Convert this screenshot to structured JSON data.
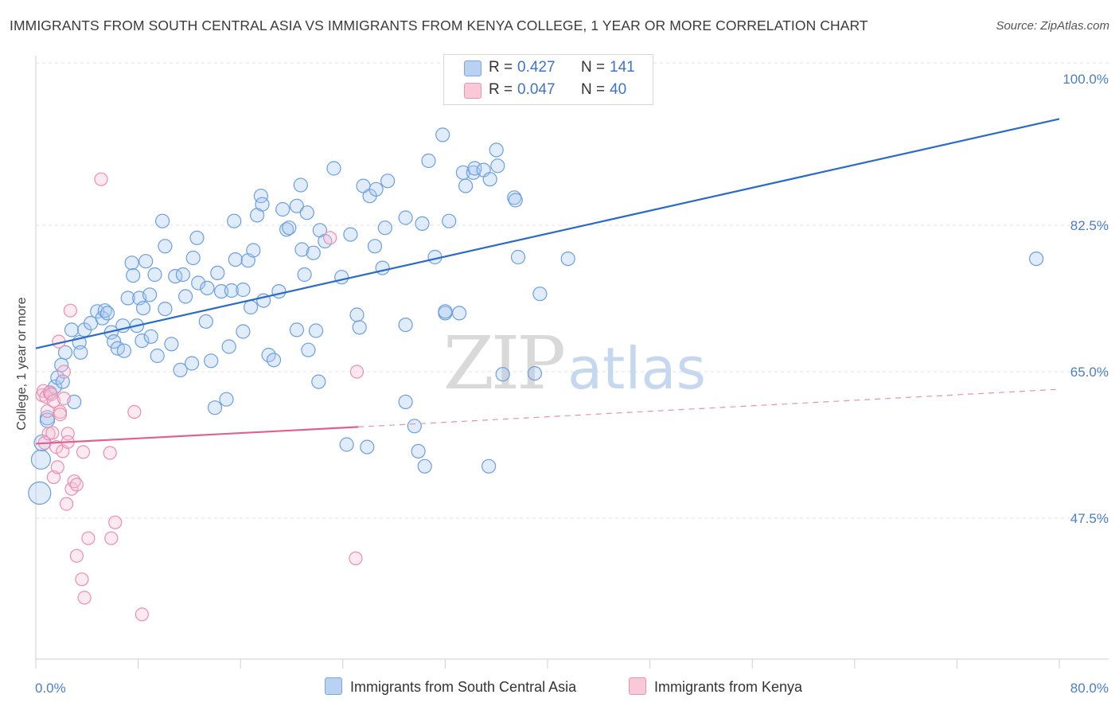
{
  "header": {
    "title": "IMMIGRANTS FROM SOUTH CENTRAL ASIA VS IMMIGRANTS FROM KENYA COLLEGE, 1 YEAR OR MORE CORRELATION CHART",
    "source": "Source: ZipAtlas.com"
  },
  "watermark": {
    "zip": "ZIP",
    "atlas": "atlas"
  },
  "legend_top": {
    "rows": [
      {
        "r_label": "R =",
        "r_value": "0.427",
        "n_label": "N =",
        "n_value": "141"
      },
      {
        "r_label": "R =",
        "r_value": "0.047",
        "n_label": "N =",
        "n_value": "40"
      }
    ]
  },
  "chart_data": {
    "type": "scatter",
    "title": "IMMIGRANTS FROM SOUTH CENTRAL ASIA VS IMMIGRANTS FROM KENYA COLLEGE, 1 YEAR OR MORE CORRELATION CHART",
    "xlabel": "",
    "ylabel": "College, 1 year or more",
    "xlim": [
      0,
      80
    ],
    "ylim": [
      32,
      102
    ],
    "x_tick_labels": [
      "0.0%",
      "80.0%"
    ],
    "y_ticks": [
      {
        "value": 100,
        "label": "100.0%"
      },
      {
        "value": 82.5,
        "label": "82.5%"
      },
      {
        "value": 65,
        "label": "65.0%"
      },
      {
        "value": 47.5,
        "label": "47.5%"
      }
    ],
    "grid": true,
    "legend_position": "bottom",
    "colors": {
      "blue": "#6b9fe0",
      "blue_fill": "#aac8f0",
      "blue_line": "#2a6bc9",
      "pink": "#ea8eb0",
      "pink_fill": "#f6c3d5",
      "pink_line": "#e0608e"
    },
    "series": [
      {
        "name": "Immigrants from South Central Asia",
        "color": "#6b9fe0",
        "trend": {
          "x": [
            0,
            80
          ],
          "y": [
            67.8,
            95.2
          ],
          "style": "solid"
        },
        "points": [
          [
            0.3,
            50.5
          ],
          [
            0.4,
            54.5
          ],
          [
            0.5,
            56.5
          ],
          [
            0.9,
            59.5
          ],
          [
            0.9,
            59.2
          ],
          [
            1.1,
            62.5
          ],
          [
            1.5,
            63.2
          ],
          [
            1.7,
            64.3
          ],
          [
            2.0,
            65.8
          ],
          [
            2.1,
            63.8
          ],
          [
            2.3,
            67.3
          ],
          [
            2.8,
            70.0
          ],
          [
            3.0,
            61.4
          ],
          [
            3.4,
            68.5
          ],
          [
            3.5,
            67.3
          ],
          [
            3.8,
            70.0
          ],
          [
            4.3,
            70.8
          ],
          [
            4.8,
            72.2
          ],
          [
            5.2,
            71.4
          ],
          [
            5.4,
            72.3
          ],
          [
            5.6,
            72.0
          ],
          [
            5.9,
            69.7
          ],
          [
            6.1,
            68.6
          ],
          [
            6.4,
            67.8
          ],
          [
            6.8,
            70.5
          ],
          [
            6.9,
            67.5
          ],
          [
            7.2,
            73.8
          ],
          [
            7.5,
            78.0
          ],
          [
            7.6,
            76.5
          ],
          [
            7.9,
            70.5
          ],
          [
            8.1,
            73.8
          ],
          [
            8.3,
            68.7
          ],
          [
            8.4,
            72.6
          ],
          [
            8.6,
            78.2
          ],
          [
            8.9,
            74.2
          ],
          [
            9.0,
            69.2
          ],
          [
            9.3,
            76.6
          ],
          [
            9.5,
            66.9
          ],
          [
            9.9,
            83.0
          ],
          [
            10.1,
            80.0
          ],
          [
            10.1,
            72.5
          ],
          [
            10.6,
            68.3
          ],
          [
            10.9,
            76.4
          ],
          [
            11.3,
            65.2
          ],
          [
            11.5,
            76.6
          ],
          [
            11.7,
            74.0
          ],
          [
            12.2,
            66.0
          ],
          [
            12.3,
            78.6
          ],
          [
            12.6,
            81.0
          ],
          [
            12.7,
            75.6
          ],
          [
            13.3,
            71.0
          ],
          [
            13.4,
            75.0
          ],
          [
            13.7,
            66.3
          ],
          [
            14.0,
            60.7
          ],
          [
            14.2,
            76.8
          ],
          [
            14.5,
            74.6
          ],
          [
            14.9,
            61.7
          ],
          [
            15.1,
            68.0
          ],
          [
            15.3,
            74.7
          ],
          [
            15.5,
            83.0
          ],
          [
            15.6,
            78.4
          ],
          [
            16.2,
            74.8
          ],
          [
            16.2,
            69.8
          ],
          [
            16.6,
            78.3
          ],
          [
            16.8,
            72.7
          ],
          [
            17.0,
            79.5
          ],
          [
            17.3,
            83.7
          ],
          [
            17.6,
            86.0
          ],
          [
            17.7,
            85.0
          ],
          [
            17.8,
            73.5
          ],
          [
            18.2,
            67.0
          ],
          [
            18.6,
            66.4
          ],
          [
            19.0,
            74.6
          ],
          [
            19.3,
            84.4
          ],
          [
            19.6,
            82.0
          ],
          [
            19.8,
            82.2
          ],
          [
            20.4,
            70.0
          ],
          [
            20.4,
            84.8
          ],
          [
            20.7,
            87.3
          ],
          [
            20.8,
            79.6
          ],
          [
            21.0,
            76.6
          ],
          [
            21.2,
            84.0
          ],
          [
            21.3,
            67.6
          ],
          [
            21.7,
            79.2
          ],
          [
            21.9,
            69.9
          ],
          [
            22.1,
            63.8
          ],
          [
            22.2,
            81.9
          ],
          [
            22.6,
            80.6
          ],
          [
            23.3,
            89.3
          ],
          [
            23.9,
            76.3
          ],
          [
            24.3,
            56.3
          ],
          [
            24.6,
            81.4
          ],
          [
            25.1,
            71.8
          ],
          [
            25.3,
            70.3
          ],
          [
            25.6,
            87.2
          ],
          [
            25.9,
            56.0
          ],
          [
            26.1,
            86.0
          ],
          [
            26.5,
            80.0
          ],
          [
            26.6,
            86.8
          ],
          [
            27.1,
            77.4
          ],
          [
            27.3,
            82.2
          ],
          [
            27.5,
            87.8
          ],
          [
            28.9,
            83.4
          ],
          [
            28.9,
            70.6
          ],
          [
            28.9,
            61.4
          ],
          [
            29.6,
            58.5
          ],
          [
            29.9,
            55.5
          ],
          [
            30.2,
            82.7
          ],
          [
            30.4,
            53.7
          ],
          [
            30.7,
            90.2
          ],
          [
            31.2,
            78.7
          ],
          [
            31.8,
            93.3
          ],
          [
            32.0,
            72.0
          ],
          [
            32.0,
            72.2
          ],
          [
            32.3,
            83.0
          ],
          [
            33.1,
            72.0
          ],
          [
            33.4,
            88.8
          ],
          [
            33.6,
            87.2
          ],
          [
            34.2,
            88.8
          ],
          [
            34.3,
            89.3
          ],
          [
            35.0,
            89.1
          ],
          [
            35.4,
            53.7
          ],
          [
            35.5,
            88.0
          ],
          [
            36.0,
            91.5
          ],
          [
            36.1,
            89.6
          ],
          [
            36.5,
            64.7
          ],
          [
            37.4,
            85.8
          ],
          [
            37.5,
            85.5
          ],
          [
            37.7,
            78.7
          ],
          [
            39.0,
            64.8
          ],
          [
            39.4,
            74.3
          ],
          [
            41.6,
            78.5
          ],
          [
            78.2,
            78.5
          ]
        ]
      },
      {
        "name": "Immigrants from Kenya",
        "color": "#ea8eb0",
        "trend": {
          "x": [
            0,
            25.2
          ],
          "y": [
            56.4,
            58.4
          ],
          "style": "solid",
          "extended": {
            "x": [
              25.2,
              80
            ],
            "y": [
              58.4,
              62.9
            ],
            "style": "dashed"
          }
        },
        "points": [
          [
            0.5,
            62.2
          ],
          [
            0.6,
            62.7
          ],
          [
            0.7,
            56.5
          ],
          [
            0.8,
            62.0
          ],
          [
            0.9,
            60.3
          ],
          [
            1.0,
            57.6
          ],
          [
            1.1,
            62.5
          ],
          [
            1.2,
            62.3
          ],
          [
            1.3,
            57.7
          ],
          [
            1.4,
            61.5
          ],
          [
            1.4,
            52.4
          ],
          [
            1.6,
            56.0
          ],
          [
            1.7,
            53.6
          ],
          [
            1.8,
            68.6
          ],
          [
            1.9,
            60.2
          ],
          [
            1.9,
            59.9
          ],
          [
            2.1,
            55.5
          ],
          [
            2.2,
            65.0
          ],
          [
            2.2,
            61.8
          ],
          [
            2.4,
            49.2
          ],
          [
            2.5,
            57.6
          ],
          [
            2.5,
            56.6
          ],
          [
            2.7,
            72.3
          ],
          [
            2.8,
            51.0
          ],
          [
            3.0,
            51.9
          ],
          [
            3.2,
            51.5
          ],
          [
            3.2,
            43.0
          ],
          [
            3.6,
            40.2
          ],
          [
            3.7,
            55.4
          ],
          [
            3.8,
            38.0
          ],
          [
            4.1,
            45.1
          ],
          [
            5.1,
            88.0
          ],
          [
            5.8,
            55.3
          ],
          [
            5.9,
            45.1
          ],
          [
            6.2,
            47.0
          ],
          [
            7.7,
            60.2
          ],
          [
            8.3,
            36.0
          ],
          [
            23.0,
            81.0
          ],
          [
            25.0,
            42.7
          ],
          [
            25.1,
            65.0
          ]
        ]
      }
    ]
  },
  "legend_bottom": {
    "items": [
      {
        "label": "Immigrants from South Central Asia"
      },
      {
        "label": "Immigrants from Kenya"
      }
    ]
  }
}
